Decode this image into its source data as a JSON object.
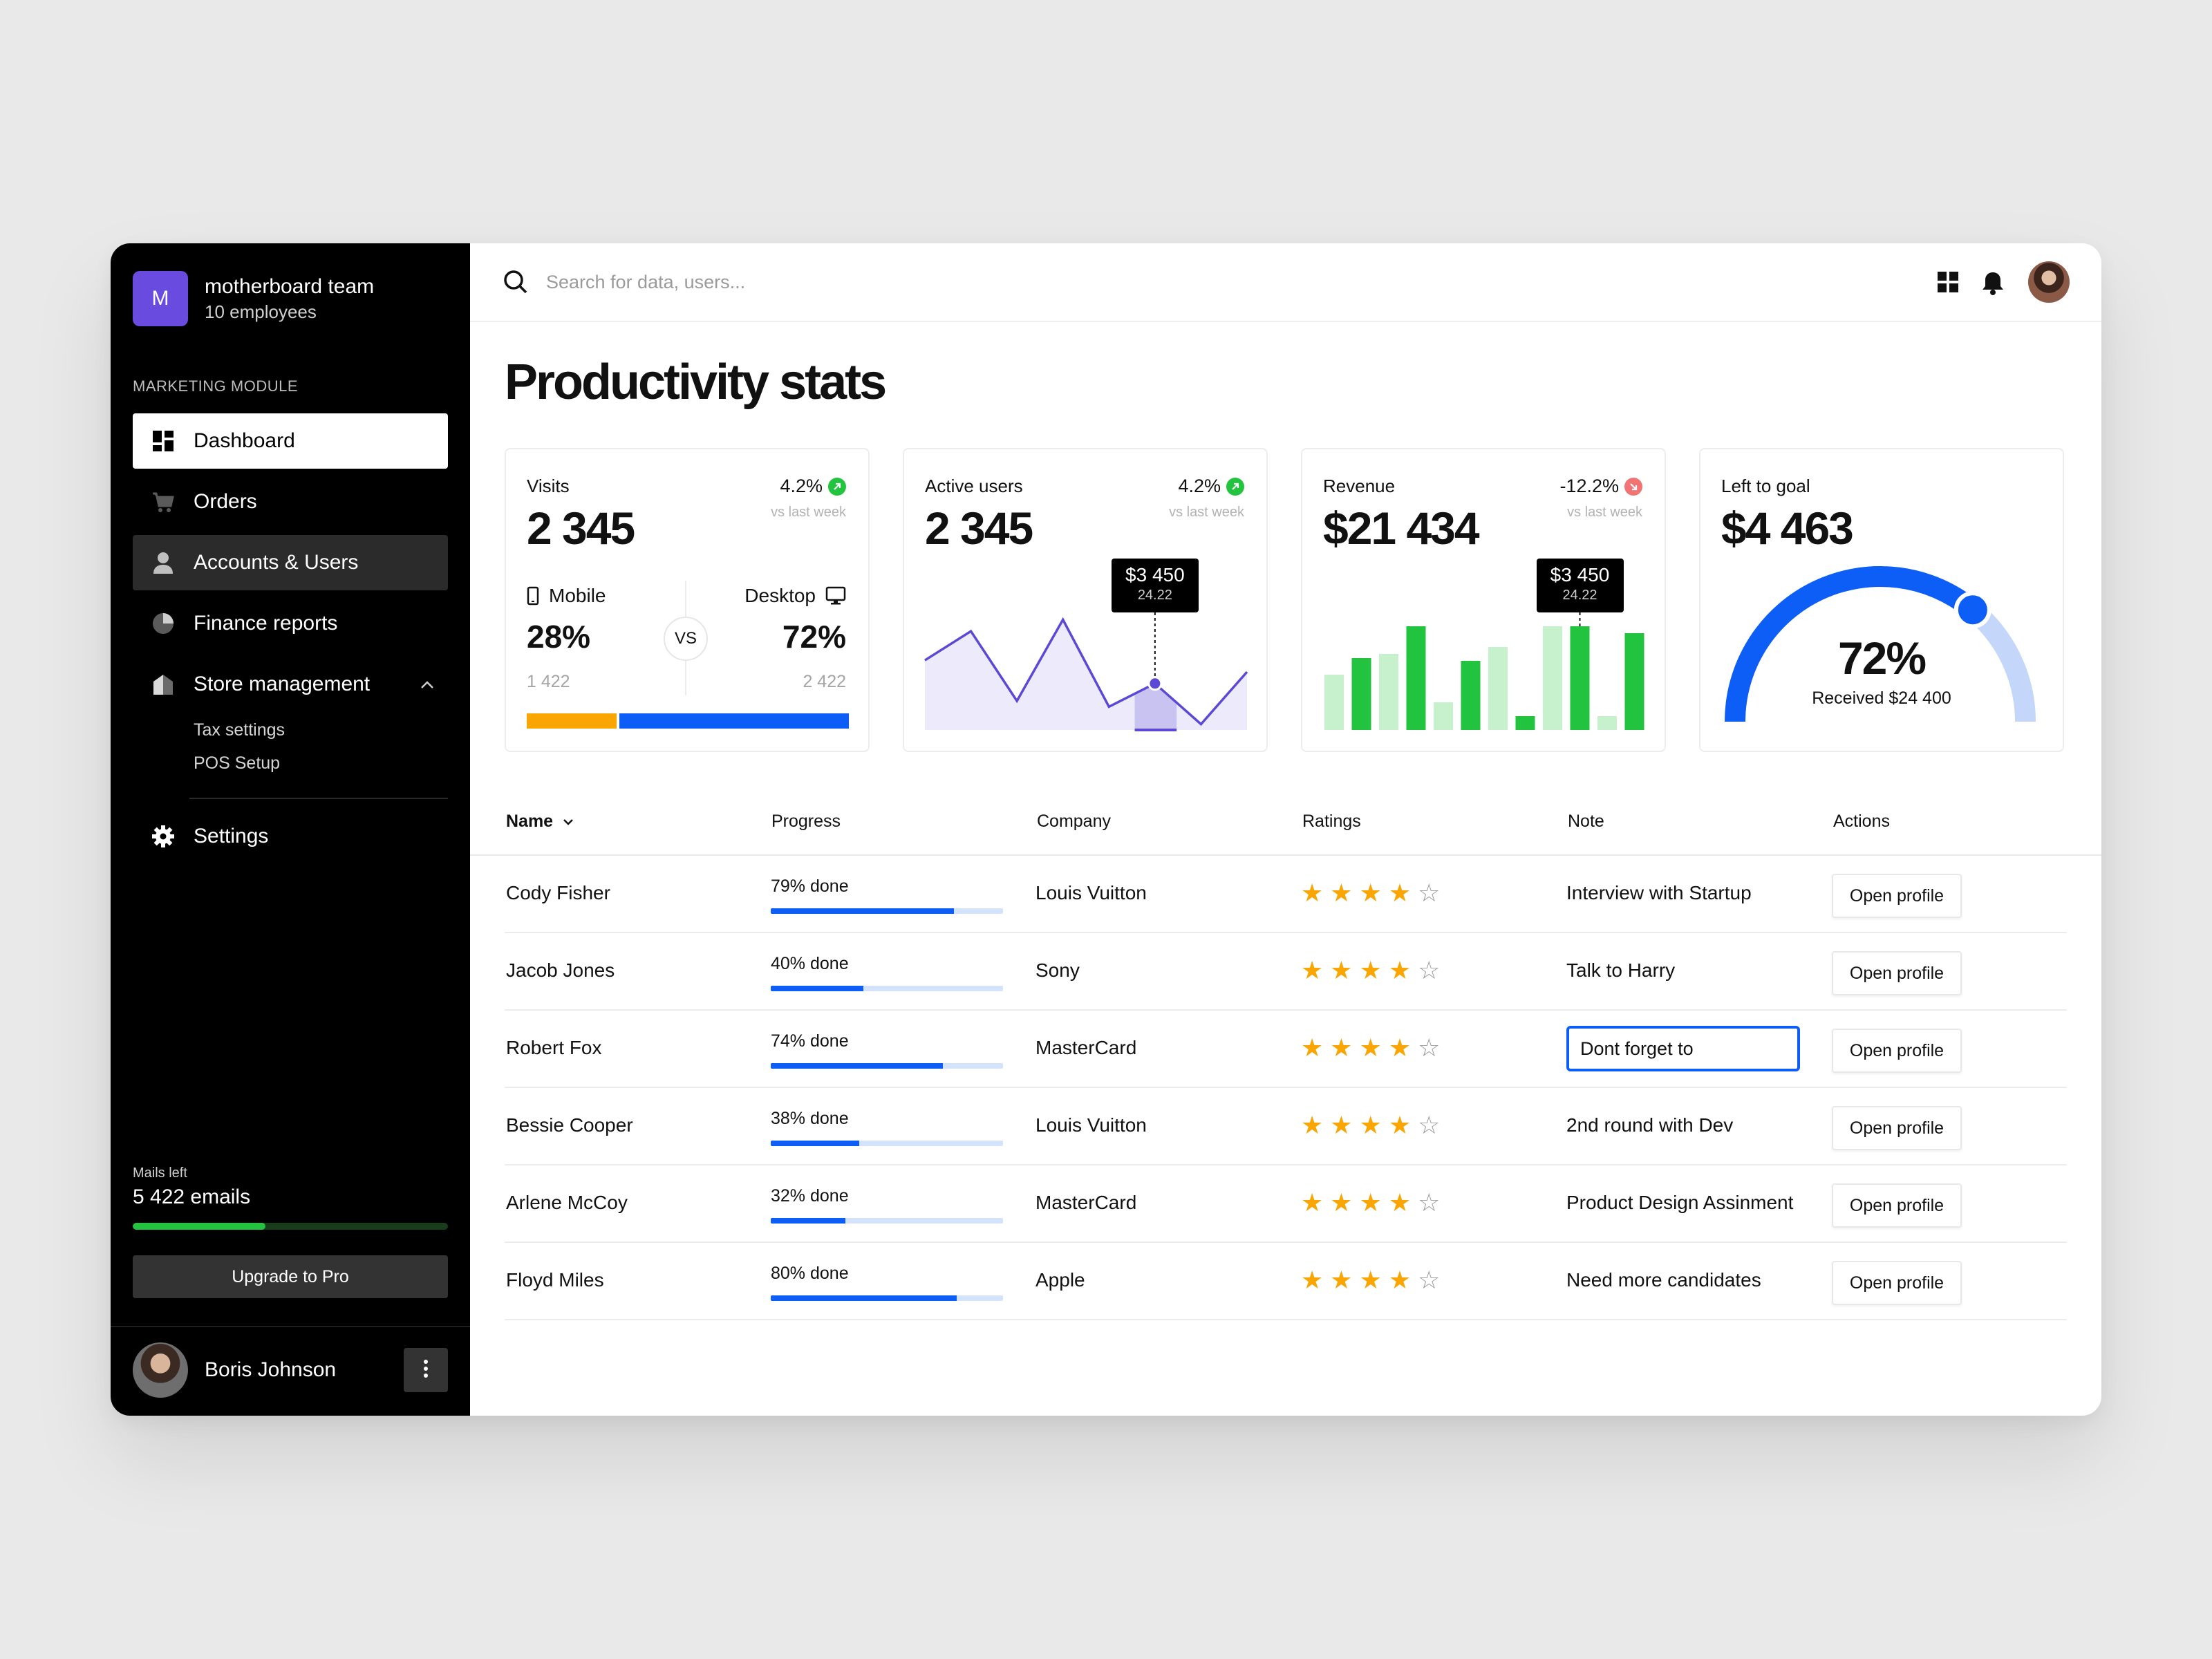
{
  "team": {
    "logo_letter": "M",
    "name": "motherboard team",
    "subtitle": "10 employees"
  },
  "sidebar": {
    "module_label": "MARKETING MODULE",
    "items": [
      {
        "label": "Dashboard",
        "icon": "dashboard-grid-icon",
        "state": "active"
      },
      {
        "label": "Orders",
        "icon": "cart-icon",
        "state": "normal"
      },
      {
        "label": "Accounts & Users",
        "icon": "user-icon",
        "state": "hover"
      },
      {
        "label": "Finance reports",
        "icon": "pie-chart-icon",
        "state": "normal"
      },
      {
        "label": "Store management",
        "icon": "store-icon",
        "state": "expanded"
      }
    ],
    "subitems": [
      "Tax settings",
      "POS Setup"
    ],
    "settings_label": "Settings",
    "mails_label": "Mails left",
    "mails_value": "5 422 emails",
    "mails_fraction": 0.42,
    "upgrade_label": "Upgrade to Pro",
    "user_name": "Boris Johnson"
  },
  "search": {
    "placeholder": "Search for data, users..."
  },
  "page_title": "Productivity stats",
  "colors": {
    "blue": "#0d5df7",
    "orange": "#f9a602",
    "green": "#22c33e",
    "light_green": "#c7f0cc",
    "purple": "#5b49d6",
    "red": "#f07474",
    "accent_purple": "#6a4be0"
  },
  "cards": {
    "visits": {
      "label": "Visits",
      "change": "4.2%",
      "trend": "up",
      "vs": "vs last week",
      "value": "2 345",
      "mobile_label": "Mobile",
      "mobile_pct": "28%",
      "mobile_count": "1 422",
      "desktop_label": "Desktop",
      "desktop_pct": "72%",
      "desktop_count": "2 422",
      "vs_label": "VS",
      "mobile_share": 0.28
    },
    "active_users": {
      "label": "Active users",
      "change": "4.2%",
      "trend": "up",
      "vs": "vs last week",
      "value": "2 345",
      "tooltip_value": "$3 450",
      "tooltip_date": "24.22"
    },
    "revenue": {
      "label": "Revenue",
      "change": "-12.2%",
      "trend": "down",
      "vs": "vs last week",
      "value": "$21 434",
      "tooltip_value": "$3 450",
      "tooltip_date": "24.22"
    },
    "goal": {
      "label": "Left to goal",
      "value": "$4 463",
      "percent": "72%",
      "received": "Received $24 400",
      "fraction": 0.72
    }
  },
  "chart_data": [
    {
      "type": "area",
      "title": "Active users",
      "x": [
        1,
        2,
        3,
        4,
        5,
        6,
        7,
        8
      ],
      "values": [
        60,
        85,
        25,
        95,
        20,
        40,
        5,
        50
      ],
      "highlight_index": 5
    },
    {
      "type": "bar",
      "title": "Revenue",
      "values": [
        40,
        52,
        55,
        75,
        20,
        50,
        60,
        10,
        75,
        75,
        10,
        70
      ],
      "highlight": [
        false,
        true,
        false,
        true,
        false,
        true,
        false,
        true,
        false,
        true,
        false,
        true
      ],
      "tooltip_index": 9
    }
  ],
  "table": {
    "headers": {
      "name": "Name",
      "progress": "Progress",
      "company": "Company",
      "ratings": "Ratings",
      "note": "Note",
      "actions": "Actions"
    },
    "action_label": "Open profile",
    "rows": [
      {
        "name": "Cody Fisher",
        "progress_text": "79% done",
        "progress": 0.79,
        "company": "Louis Vuitton",
        "rating": 4,
        "note": "Interview with Startup",
        "editing": false
      },
      {
        "name": "Jacob Jones",
        "progress_text": "40% done",
        "progress": 0.4,
        "company": "Sony",
        "rating": 4,
        "note": "Talk to Harry",
        "editing": false
      },
      {
        "name": "Robert Fox",
        "progress_text": "74% done",
        "progress": 0.74,
        "company": "MasterCard",
        "rating": 4,
        "note": "Dont forget to ",
        "editing": true
      },
      {
        "name": "Bessie Cooper",
        "progress_text": "38% done",
        "progress": 0.38,
        "company": "Louis Vuitton",
        "rating": 4,
        "note": "2nd round with Dev",
        "editing": false
      },
      {
        "name": "Arlene McCoy",
        "progress_text": "32% done",
        "progress": 0.32,
        "company": "MasterCard",
        "rating": 4,
        "note": "Product Design Assinment",
        "editing": false
      },
      {
        "name": "Floyd Miles",
        "progress_text": "80% done",
        "progress": 0.8,
        "company": "Apple",
        "rating": 4,
        "note": "Need more candidates",
        "editing": false
      }
    ]
  }
}
